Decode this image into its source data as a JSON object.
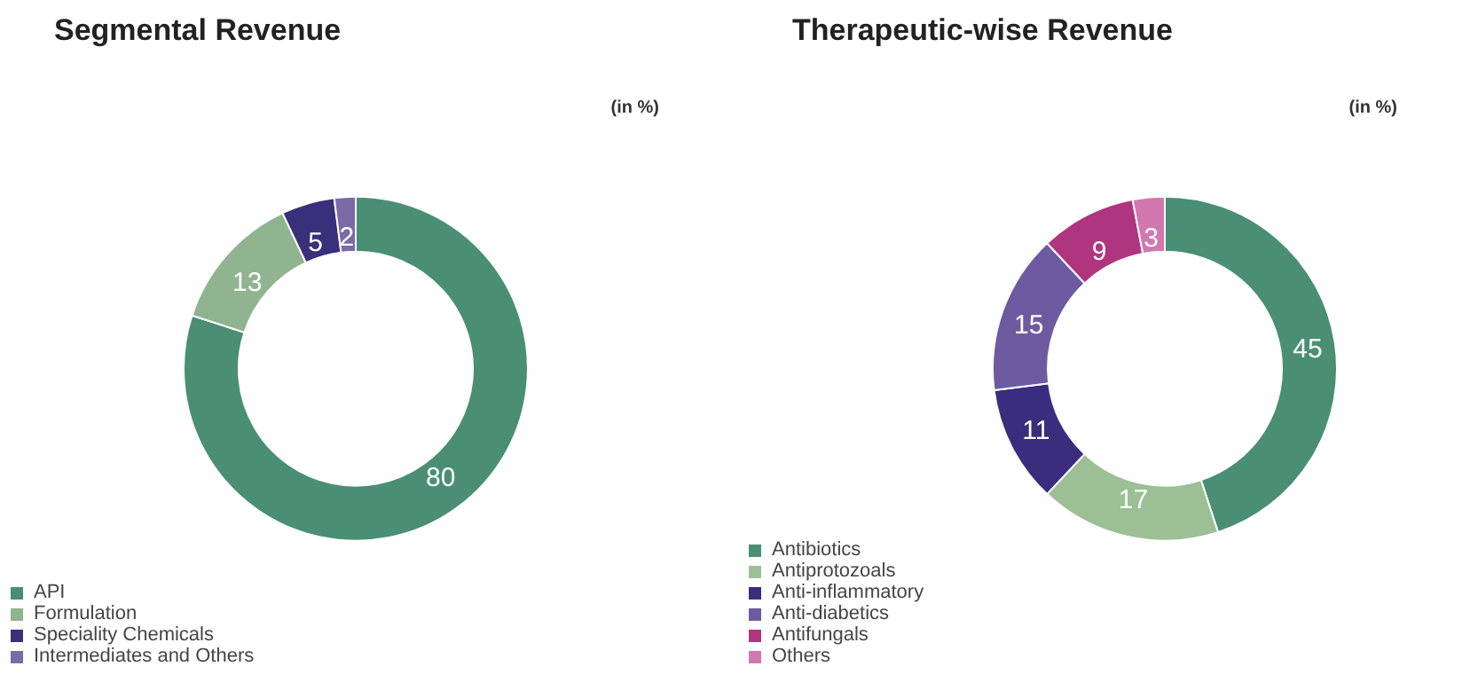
{
  "chart_data": [
    {
      "type": "donut",
      "title": "Segmental Revenue",
      "annotations": [
        "(in %)"
      ],
      "categories": [
        "API",
        "Formulation",
        "Speciality Chemicals",
        "Intermediates and Others"
      ],
      "values": [
        80,
        13,
        5,
        2
      ],
      "colors": [
        "#4a8f73",
        "#8fb48f",
        "#3a2f7a",
        "#7a6aa8"
      ],
      "data_labels": true,
      "legend": "bottom left"
    },
    {
      "type": "donut",
      "title": "Therapeutic-wise Revenue",
      "annotations": [
        "(in %)"
      ],
      "categories": [
        "Antibiotics",
        "Antiprotozoals",
        "Anti-inflammatory",
        "Anti-diabetics",
        "Antifungals",
        "Others"
      ],
      "values": [
        45,
        17,
        11,
        15,
        9,
        3
      ],
      "colors": [
        "#4a8f73",
        "#9cbf95",
        "#3b2d7d",
        "#6e5aa0",
        "#b0357f",
        "#d277b0"
      ],
      "data_labels": true,
      "legend": "bottom left"
    }
  ]
}
